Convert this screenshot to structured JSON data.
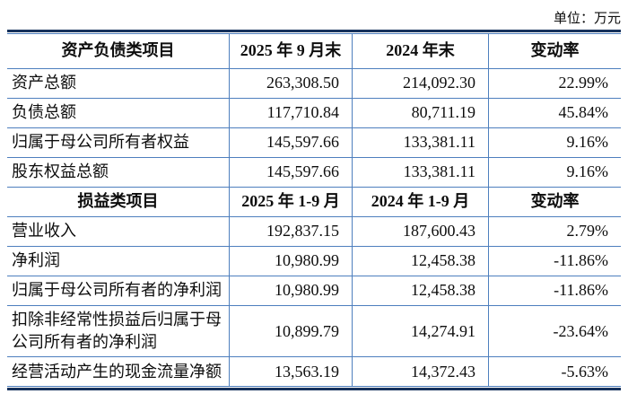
{
  "unit_label": "单位：万元",
  "colors": {
    "rule_blue": "#4e7fbe",
    "rule_dark": "#16325c",
    "text": "#0d0d0d",
    "background": "#ffffff"
  },
  "table": {
    "sections": [
      {
        "header": {
          "c0": "资产负债类项目",
          "c1": "2025 年 9 月末",
          "c2": "2024 年末",
          "c3": "变动率"
        },
        "rows": [
          {
            "c0": "资产总额",
            "c1": "263,308.50",
            "c2": "214,092.30",
            "c3": "22.99%"
          },
          {
            "c0": "负债总额",
            "c1": "117,710.84",
            "c2": "80,711.19",
            "c3": "45.84%"
          },
          {
            "c0": "归属于母公司所有者权益",
            "c1": "145,597.66",
            "c2": "133,381.11",
            "c3": "9.16%"
          },
          {
            "c0": "股东权益总额",
            "c1": "145,597.66",
            "c2": "133,381.11",
            "c3": "9.16%"
          }
        ]
      },
      {
        "header": {
          "c0": "损益类项目",
          "c1": "2025 年 1-9 月",
          "c2": "2024 年 1-9 月",
          "c3": "变动率"
        },
        "rows": [
          {
            "c0": "营业收入",
            "c1": "192,837.15",
            "c2": "187,600.43",
            "c3": "2.79%"
          },
          {
            "c0": "净利润",
            "c1": "10,980.99",
            "c2": "12,458.38",
            "c3": "-11.86%"
          },
          {
            "c0": "归属于母公司所有者的净利润",
            "c1": "10,980.99",
            "c2": "12,458.38",
            "c3": "-11.86%"
          },
          {
            "c0": "扣除非经常性损益后归属于母公司所有者的净利润",
            "c1": "10,899.79",
            "c2": "14,274.91",
            "c3": "-23.64%"
          },
          {
            "c0": "经营活动产生的现金流量净额",
            "c1": "13,563.19",
            "c2": "14,372.43",
            "c3": "-5.63%"
          }
        ]
      }
    ]
  }
}
